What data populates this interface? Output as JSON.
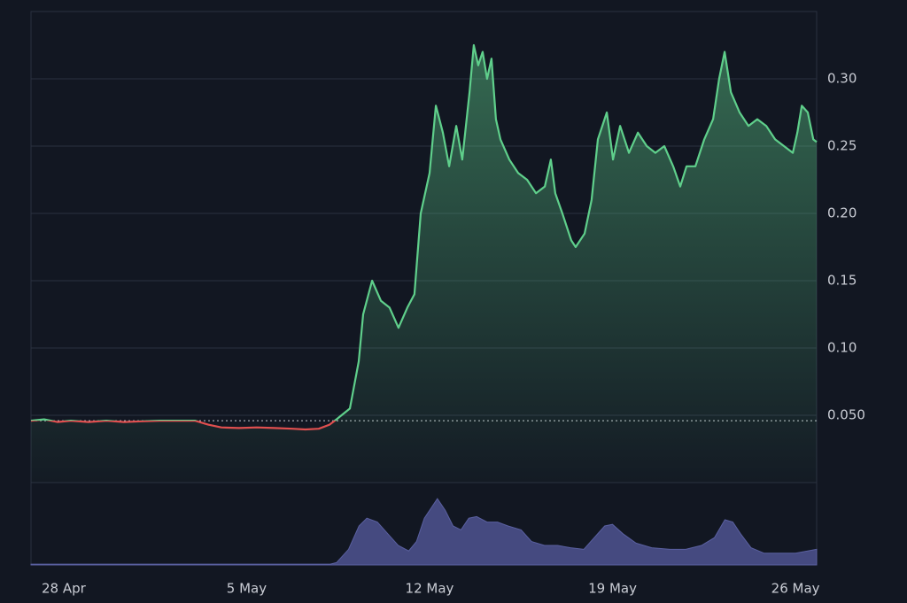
{
  "chart_data": {
    "type": "area-line",
    "x": [
      -1.25,
      -0.75,
      -0.24,
      0.27,
      0.95,
      1.63,
      2.31,
      2.98,
      3.66,
      4.34,
      5.02,
      5.53,
      6.03,
      6.71,
      7.39,
      8.07,
      8.75,
      9.25,
      9.76,
      10.17,
      10.44,
      10.95,
      11.29,
      11.46,
      11.8,
      12.14,
      12.47,
      12.81,
      13.15,
      13.42,
      13.66,
      14.0,
      14.24,
      14.51,
      14.75,
      15.02,
      15.25,
      15.53,
      15.69,
      15.86,
      16.03,
      16.2,
      16.37,
      16.54,
      16.71,
      17.05,
      17.39,
      17.73,
      18.07,
      18.41,
      18.64,
      18.81,
      19.08,
      19.42,
      19.59,
      19.93,
      20.2,
      20.44,
      20.78,
      21.02,
      21.29,
      21.63,
      21.97,
      22.31,
      22.64,
      22.98,
      23.32,
      23.59,
      23.83,
      24.17,
      24.51,
      24.85,
      25.08,
      25.29,
      25.53,
      25.86,
      26.2,
      26.54,
      26.88,
      27.22,
      27.56,
      27.9,
      28.07,
      28.24,
      28.47,
      28.68,
      28.81
    ],
    "values": [
      0.046,
      0.047,
      0.045,
      0.046,
      0.045,
      0.046,
      0.045,
      0.0455,
      0.046,
      0.046,
      0.046,
      0.043,
      0.041,
      0.0405,
      0.041,
      0.0405,
      0.04,
      0.0395,
      0.04,
      0.043,
      0.047,
      0.055,
      0.09,
      0.125,
      0.15,
      0.135,
      0.13,
      0.115,
      0.13,
      0.14,
      0.2,
      0.23,
      0.28,
      0.26,
      0.235,
      0.265,
      0.24,
      0.29,
      0.325,
      0.31,
      0.32,
      0.3,
      0.315,
      0.27,
      0.255,
      0.24,
      0.23,
      0.225,
      0.215,
      0.22,
      0.24,
      0.215,
      0.2,
      0.18,
      0.175,
      0.185,
      0.21,
      0.255,
      0.275,
      0.24,
      0.265,
      0.245,
      0.26,
      0.25,
      0.245,
      0.25,
      0.235,
      0.22,
      0.235,
      0.235,
      0.255,
      0.27,
      0.3,
      0.32,
      0.29,
      0.275,
      0.265,
      0.27,
      0.265,
      0.255,
      0.25,
      0.245,
      0.26,
      0.28,
      0.275,
      0.255,
      0.253
    ],
    "color_up": "#5fcf8b",
    "color_down": "#e04f4f",
    "baseline": 0.046,
    "ylim": [
      0,
      0.35
    ],
    "yticks": [
      {
        "value": 0.05,
        "label": "0.050"
      },
      {
        "value": 0.1,
        "label": "0.10"
      },
      0.15,
      {
        "value": 0.2,
        "label": "0.20"
      },
      0.25,
      {
        "value": 0.3,
        "label": "0.30"
      }
    ],
    "xlim": [
      -1.25,
      28.81
    ],
    "xticks": [
      {
        "value": 0,
        "label": "28 Apr"
      },
      {
        "value": 7,
        "label": "5 May"
      },
      {
        "value": 14,
        "label": "12 May"
      },
      {
        "value": 21,
        "label": "19 May"
      },
      {
        "value": 28,
        "label": "26 May"
      }
    ],
    "grid": true,
    "volume": {
      "x": [
        -1.25,
        10.2,
        10.44,
        10.9,
        11.3,
        11.6,
        12.0,
        12.4,
        12.8,
        13.2,
        13.5,
        13.8,
        14.1,
        14.3,
        14.6,
        14.9,
        15.2,
        15.5,
        15.8,
        16.2,
        16.6,
        17.0,
        17.5,
        17.9,
        18.4,
        18.9,
        19.4,
        19.9,
        20.3,
        20.7,
        21.0,
        21.4,
        21.9,
        22.5,
        23.2,
        23.8,
        24.4,
        24.9,
        25.3,
        25.6,
        25.9,
        26.3,
        26.8,
        27.4,
        28.0,
        28.81
      ],
      "values": [
        1,
        1,
        3,
        20,
        50,
        60,
        55,
        40,
        25,
        18,
        30,
        60,
        75,
        85,
        70,
        50,
        45,
        60,
        62,
        55,
        55,
        50,
        45,
        30,
        25,
        25,
        22,
        20,
        35,
        50,
        52,
        40,
        28,
        22,
        20,
        20,
        25,
        35,
        58,
        55,
        40,
        22,
        15,
        15,
        15,
        20
      ],
      "lim": [
        0,
        100
      ],
      "color": "#454a80"
    }
  }
}
